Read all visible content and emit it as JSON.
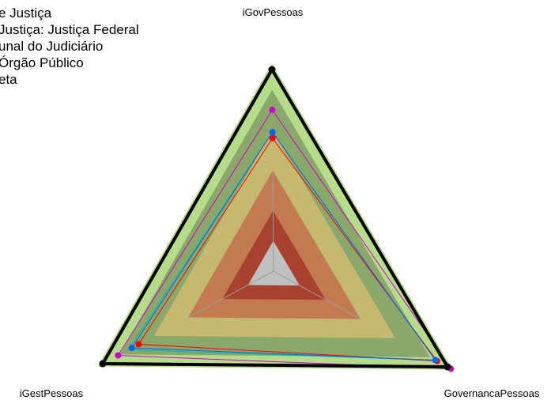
{
  "chart_data": {
    "type": "radar",
    "axes": [
      "iGovPessoas",
      "GovernancaPessoas",
      "iGestPessoas"
    ],
    "range": [
      0,
      1
    ],
    "bands": [
      {
        "level": 0.15,
        "color": "#c0c0c0"
      },
      {
        "level": 0.3,
        "color": "#a8422e"
      },
      {
        "level": 0.5,
        "color": "#c47a50"
      },
      {
        "level": 0.7,
        "color": "#c4b96e"
      },
      {
        "level": 0.9,
        "color": "#8aa86a"
      },
      {
        "level": 1.03,
        "color": "#b5dc8a"
      }
    ],
    "legend": {
      "position": "top-left",
      "entries": [
        "e Justiça",
        "Justiça: Justiça Federal",
        "unal do Judiciário",
        "Órgão Público",
        "eta"
      ]
    },
    "series": [
      {
        "name": "e Justiça",
        "color": "#00b8b8",
        "values": [
          0.69,
          0.93,
          0.85
        ],
        "marker": false
      },
      {
        "name": "Justiça: Justiça Federal",
        "color": "#ff0000",
        "values": [
          0.66,
          0.94,
          0.79
        ],
        "marker": true
      },
      {
        "name": "unal do Judiciário",
        "color": "#0066ee",
        "values": [
          0.69,
          0.93,
          0.83
        ],
        "marker": true
      },
      {
        "name": "Órgão Público",
        "color": "#cc00cc",
        "values": [
          0.8,
          1.02,
          0.91
        ],
        "marker": true
      },
      {
        "name": "eta",
        "color": "#000000",
        "values": [
          1.0,
          1.0,
          1.0
        ],
        "marker": true
      }
    ]
  }
}
